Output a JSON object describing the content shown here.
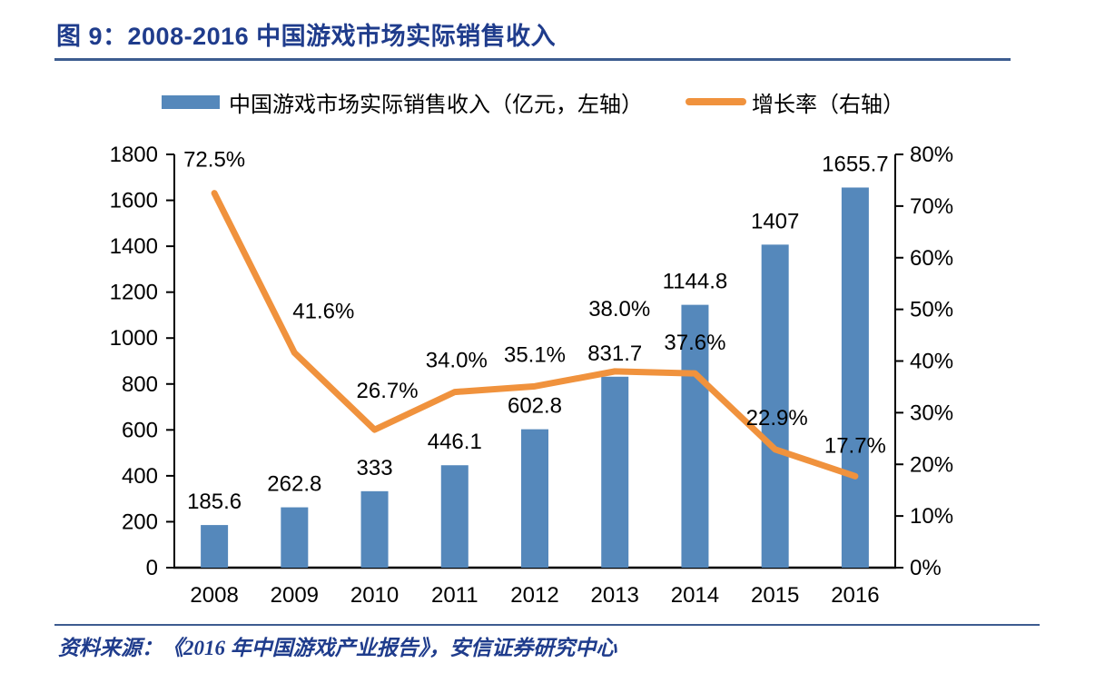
{
  "header": {
    "title": "图 9：2008-2016 中国游戏市场实际销售收入"
  },
  "legend": {
    "bar": {
      "label": "中国游戏市场实际销售收入（亿元，左轴）",
      "color": "#5588BB"
    },
    "line": {
      "label": "增长率（右轴）",
      "color": "#F0923D"
    }
  },
  "chart_data": {
    "type": "bar",
    "subtype": "bar+line dual-axis",
    "categories": [
      "2008",
      "2009",
      "2010",
      "2011",
      "2012",
      "2013",
      "2014",
      "2015",
      "2016"
    ],
    "series": [
      {
        "name": "中国游戏市场实际销售收入（亿元，左轴）",
        "type": "bar",
        "axis": "left",
        "color": "#5588BB",
        "values": [
          185.6,
          262.8,
          333,
          446.1,
          602.8,
          831.7,
          1144.8,
          1407,
          1655.7
        ],
        "labels": [
          "185.6",
          "262.8",
          "333",
          "446.1",
          "602.8",
          "831.7",
          "1144.8",
          "1407",
          "1655.7"
        ]
      },
      {
        "name": "增长率（右轴）",
        "type": "line",
        "axis": "right",
        "color": "#F0923D",
        "values": [
          72.5,
          41.6,
          26.7,
          34.0,
          35.1,
          38.0,
          37.6,
          22.9,
          17.7
        ],
        "labels": [
          "72.5%",
          "41.6%",
          "26.7%",
          "34.0%",
          "35.1%",
          "38.0%",
          "37.6%",
          "22.9%",
          "17.7%"
        ]
      }
    ],
    "left_axis": {
      "min": 0,
      "max": 1800,
      "step": 200,
      "ticks": [
        "0",
        "200",
        "400",
        "600",
        "800",
        "1000",
        "1200",
        "1400",
        "1600",
        "1800"
      ]
    },
    "right_axis": {
      "min": 0,
      "max": 80,
      "step": 10,
      "ticks": [
        "0%",
        "10%",
        "20%",
        "30%",
        "40%",
        "50%",
        "60%",
        "70%",
        "80%"
      ]
    },
    "grid": false,
    "legend_position": "top",
    "axis_color": "#000000",
    "label_color": "#000000"
  },
  "footer": {
    "source": "资料来源：《2016 年中国游戏产业报告》，安信证券研究中心"
  }
}
